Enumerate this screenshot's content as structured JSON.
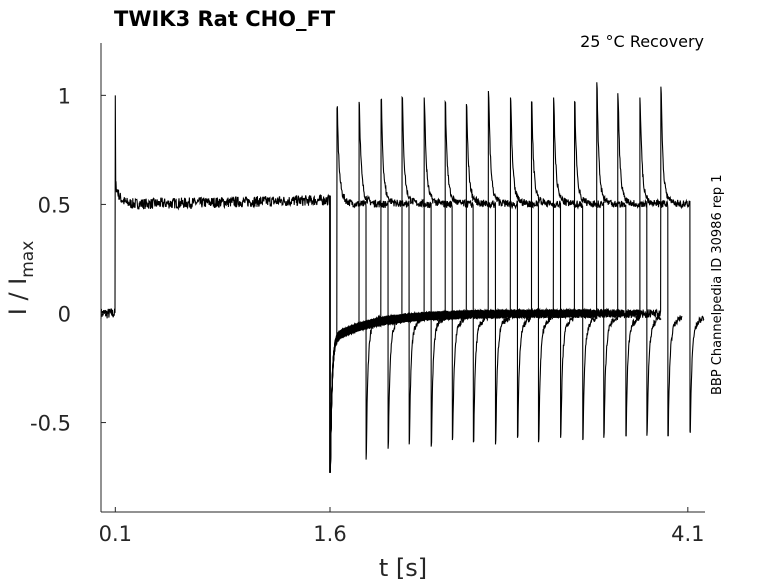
{
  "chart_data": {
    "type": "line",
    "title": "TWIK3  Rat  CHO_FT",
    "subtitle": "25 °C  Recovery",
    "side_label": "BBP Channelpedia ID 30986 rep 1",
    "xlabel": "t [s]",
    "ylabel": "I / I",
    "ylabel_sub": "max",
    "xlim": [
      0.0,
      4.22
    ],
    "ylim": [
      -0.91,
      1.24
    ],
    "xticks": [
      {
        "v": 0.1,
        "label": "0.1"
      },
      {
        "v": 1.6,
        "label": "1.6"
      },
      {
        "v": 4.1,
        "label": "4.1"
      }
    ],
    "yticks": [
      {
        "v": 1,
        "label": "1"
      },
      {
        "v": 0.5,
        "label": "0.5"
      },
      {
        "v": 0,
        "label": "0"
      },
      {
        "v": -0.5,
        "label": "-0.5"
      }
    ],
    "grid": false,
    "prepulse": {
      "t_on": 0.1,
      "t_off": 1.6,
      "peak": 1.0,
      "level": 0.5,
      "tail_min": -0.73
    },
    "sweeps": [
      {
        "t_on": 1.649,
        "t_off": 1.852,
        "peak": 0.94,
        "trough": -0.67
      },
      {
        "t_on": 1.803,
        "t_off": 2.006,
        "peak": 0.97,
        "trough": -0.62
      },
      {
        "t_on": 1.957,
        "t_off": 2.153,
        "peak": 0.98,
        "trough": -0.6
      },
      {
        "t_on": 2.104,
        "t_off": 2.307,
        "peak": 0.99,
        "trough": -0.61
      },
      {
        "t_on": 2.258,
        "t_off": 2.455,
        "peak": 0.99,
        "trough": -0.58
      },
      {
        "t_on": 2.405,
        "t_off": 2.602,
        "peak": 0.97,
        "trough": -0.59
      },
      {
        "t_on": 2.553,
        "t_off": 2.756,
        "peak": 0.96,
        "trough": -0.6
      },
      {
        "t_on": 2.707,
        "t_off": 2.91,
        "peak": 1.02,
        "trough": -0.57
      },
      {
        "t_on": 2.861,
        "t_off": 3.057,
        "peak": 0.99,
        "trough": -0.59
      },
      {
        "t_on": 3.008,
        "t_off": 3.211,
        "peak": 0.97,
        "trough": -0.57
      },
      {
        "t_on": 3.162,
        "t_off": 3.366,
        "peak": 0.99,
        "trough": -0.58
      },
      {
        "t_on": 3.309,
        "t_off": 3.513,
        "peak": 0.97,
        "trough": -0.57
      },
      {
        "t_on": 3.464,
        "t_off": 3.667,
        "peak": 1.06,
        "trough": -0.56
      },
      {
        "t_on": 3.611,
        "t_off": 3.814,
        "peak": 1.01,
        "trough": -0.56
      },
      {
        "t_on": 3.765,
        "t_off": 3.961,
        "peak": 0.99,
        "trough": -0.56
      },
      {
        "t_on": 3.912,
        "t_off": 4.115,
        "peak": 1.04,
        "trough": -0.54
      }
    ],
    "colors": {
      "trace": "#000000",
      "axis": "#262626"
    }
  }
}
